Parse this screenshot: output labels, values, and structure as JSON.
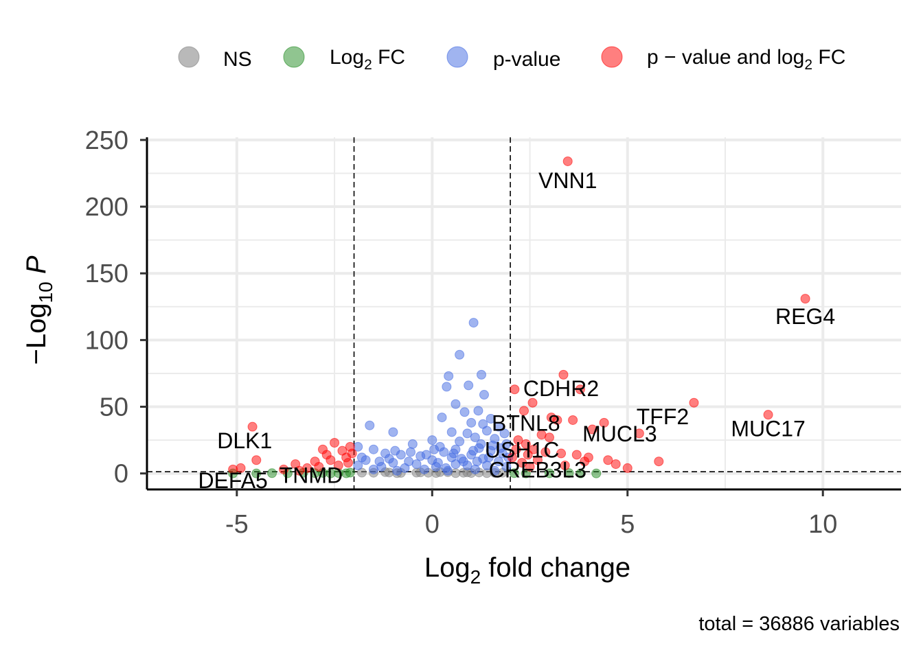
{
  "chart_data": {
    "type": "scatter",
    "subtype": "volcano",
    "xlabel": "Log2 fold change",
    "ylabel": "−Log10 P",
    "caption": "total = 36886 variables",
    "xlim": [
      -7.3,
      12.0
    ],
    "ylim": [
      -12,
      252
    ],
    "xticks": [
      -5,
      0,
      5,
      10
    ],
    "yticks": [
      0,
      50,
      100,
      150,
      200,
      250
    ],
    "grid": true,
    "fc_cutoff": [
      -2,
      2
    ],
    "p_cutoff": 1.3,
    "legend_position": "top",
    "legend": [
      {
        "key": "NS",
        "text": "NS",
        "color": "#808080"
      },
      {
        "key": "FC",
        "text": "Log2 FC",
        "color": "#228b22"
      },
      {
        "key": "P",
        "text": "p-value",
        "color": "#4169e1"
      },
      {
        "key": "FC_P",
        "text": "p − value and log2 FC",
        "color": "#ff0000"
      }
    ],
    "series": [
      {
        "key": "NS",
        "color": "#808080",
        "points": [
          [
            -1.5,
            0.5
          ],
          [
            -1.2,
            1.0
          ],
          [
            -0.8,
            0.4
          ],
          [
            -0.3,
            0.8
          ],
          [
            0.1,
            0.3
          ],
          [
            0.4,
            0.9
          ],
          [
            0.8,
            0.5
          ],
          [
            1.2,
            0.7
          ],
          [
            1.6,
            0.4
          ],
          [
            -0.9,
            0.2
          ],
          [
            0.6,
            0.2
          ],
          [
            -0.4,
            0.6
          ],
          [
            1.0,
            0.3
          ],
          [
            -1.8,
            0.6
          ],
          [
            1.8,
            0.5
          ],
          [
            0.2,
            1.0
          ],
          [
            -0.1,
            0.5
          ],
          [
            0.9,
            0.8
          ],
          [
            1.4,
            0.2
          ],
          [
            -1.1,
            0.7
          ]
        ]
      },
      {
        "key": "FC",
        "color": "#228b22",
        "points": [
          [
            -4.5,
            0.0
          ],
          [
            -4.1,
            0.2
          ],
          [
            -3.7,
            0.1
          ],
          [
            -3.3,
            0.5
          ],
          [
            -3.0,
            0.2
          ],
          [
            -2.8,
            0.4
          ],
          [
            -2.6,
            0.0
          ],
          [
            -2.4,
            0.3
          ],
          [
            -2.2,
            0.1
          ],
          [
            -2.1,
            0.6
          ],
          [
            2.1,
            0.2
          ],
          [
            2.4,
            0.0
          ],
          [
            3.0,
            0.1
          ],
          [
            3.5,
            0.3
          ],
          [
            3.8,
            0.0
          ],
          [
            4.2,
            0.0
          ],
          [
            -5.1,
            0.0
          ]
        ]
      },
      {
        "key": "P",
        "color": "#4169e1",
        "points": [
          [
            1.06,
            113
          ],
          [
            0.7,
            89
          ],
          [
            1.26,
            74
          ],
          [
            0.42,
            73
          ],
          [
            0.37,
            65
          ],
          [
            0.93,
            66
          ],
          [
            1.33,
            59
          ],
          [
            0.6,
            52
          ],
          [
            0.83,
            46
          ],
          [
            1.18,
            47
          ],
          [
            0.25,
            42
          ],
          [
            1.5,
            41
          ],
          [
            -1.6,
            36
          ],
          [
            1.0,
            38
          ],
          [
            1.3,
            37
          ],
          [
            1.7,
            35
          ],
          [
            -1.0,
            31
          ],
          [
            0.5,
            31
          ],
          [
            0.9,
            30
          ],
          [
            1.4,
            32
          ],
          [
            0.0,
            25
          ],
          [
            -0.5,
            22
          ],
          [
            0.2,
            20
          ],
          [
            0.7,
            24
          ],
          [
            1.1,
            27
          ],
          [
            1.6,
            26
          ],
          [
            1.9,
            22
          ],
          [
            -1.9,
            20
          ],
          [
            -1.5,
            18
          ],
          [
            -1.2,
            15
          ],
          [
            -0.8,
            14
          ],
          [
            -0.3,
            13
          ],
          [
            0.3,
            16
          ],
          [
            0.6,
            18
          ],
          [
            1.2,
            19
          ],
          [
            1.5,
            17
          ],
          [
            1.8,
            15
          ],
          [
            -1.7,
            10
          ],
          [
            -1.0,
            8
          ],
          [
            -0.6,
            9
          ],
          [
            0.0,
            10
          ],
          [
            0.5,
            12
          ],
          [
            1.0,
            14
          ],
          [
            1.3,
            11
          ],
          [
            1.7,
            9
          ],
          [
            1.95,
            12
          ],
          [
            -1.9,
            6
          ],
          [
            -1.3,
            5
          ],
          [
            -0.7,
            4
          ],
          [
            0.1,
            5
          ],
          [
            0.6,
            7
          ],
          [
            0.9,
            6
          ],
          [
            1.4,
            6
          ],
          [
            1.9,
            5
          ],
          [
            -1.5,
            3
          ],
          [
            -0.9,
            2
          ],
          [
            -0.2,
            3
          ],
          [
            0.4,
            2
          ],
          [
            1.1,
            3
          ],
          [
            1.6,
            2
          ],
          [
            -1.8,
            12
          ],
          [
            -1.1,
            11
          ],
          [
            -0.4,
            7
          ],
          [
            0.8,
            9
          ],
          [
            1.25,
            22
          ],
          [
            1.45,
            12
          ],
          [
            0.15,
            8
          ],
          [
            -0.15,
            14
          ],
          [
            0.35,
            4
          ],
          [
            1.85,
            30
          ],
          [
            1.55,
            21
          ],
          [
            1.05,
            17
          ],
          [
            0.75,
            11
          ],
          [
            -0.95,
            17
          ],
          [
            -1.35,
            9
          ],
          [
            0.55,
            15
          ],
          [
            1.15,
            9
          ],
          [
            1.75,
            19
          ],
          [
            -0.55,
            16
          ],
          [
            0.05,
            18
          ]
        ]
      },
      {
        "key": "FC_P",
        "color": "#ff0000",
        "points": [
          [
            3.47,
            234
          ],
          [
            9.55,
            131
          ],
          [
            3.36,
            74
          ],
          [
            3.79,
            63
          ],
          [
            2.11,
            63
          ],
          [
            6.7,
            53
          ],
          [
            8.6,
            44
          ],
          [
            2.35,
            47
          ],
          [
            2.57,
            53
          ],
          [
            3.05,
            42
          ],
          [
            3.2,
            40
          ],
          [
            3.6,
            40
          ],
          [
            4.4,
            38
          ],
          [
            4.1,
            33
          ],
          [
            5.3,
            30
          ],
          [
            2.8,
            29
          ],
          [
            3.0,
            27
          ],
          [
            2.2,
            25
          ],
          [
            2.4,
            22
          ],
          [
            2.6,
            18
          ],
          [
            2.9,
            16
          ],
          [
            3.3,
            15
          ],
          [
            3.7,
            14
          ],
          [
            4.0,
            12
          ],
          [
            4.5,
            10
          ],
          [
            5.8,
            9
          ],
          [
            4.7,
            7
          ],
          [
            5.0,
            4
          ],
          [
            2.05,
            12
          ],
          [
            2.3,
            8
          ],
          [
            2.5,
            5
          ],
          [
            2.7,
            10
          ],
          [
            3.4,
            6
          ],
          [
            3.9,
            9
          ],
          [
            2.15,
            18
          ],
          [
            2.45,
            14
          ],
          [
            -4.6,
            35
          ],
          [
            -4.5,
            10
          ],
          [
            -4.9,
            4
          ],
          [
            -5.1,
            3
          ],
          [
            -3.5,
            7
          ],
          [
            -3.0,
            9
          ],
          [
            -2.5,
            23
          ],
          [
            -2.3,
            17
          ],
          [
            -2.2,
            12
          ],
          [
            -2.7,
            14
          ],
          [
            -2.1,
            20
          ],
          [
            -2.4,
            6
          ],
          [
            -3.2,
            4
          ],
          [
            -2.9,
            5
          ],
          [
            -2.05,
            15
          ],
          [
            -2.6,
            10
          ],
          [
            -3.8,
            3
          ],
          [
            -2.15,
            8
          ],
          [
            -2.8,
            18
          ],
          [
            -3.4,
            2
          ]
        ]
      }
    ],
    "annotations": [
      {
        "text": "VNN1",
        "x": 3.47,
        "y": 214
      },
      {
        "text": "REG4",
        "x": 9.55,
        "y": 112
      },
      {
        "text": "CDHR2",
        "x": 3.3,
        "y": 58
      },
      {
        "text": "TFF2",
        "x": 5.9,
        "y": 37
      },
      {
        "text": "MUC17",
        "x": 8.6,
        "y": 28
      },
      {
        "text": "BTNL8",
        "x": 2.4,
        "y": 32
      },
      {
        "text": "MUCL3",
        "x": 4.8,
        "y": 24
      },
      {
        "text": "USH1C",
        "x": 2.3,
        "y": 12
      },
      {
        "text": "CREB3L3",
        "x": 2.7,
        "y": -3
      },
      {
        "text": "DLK1",
        "x": -4.8,
        "y": 19
      },
      {
        "text": "DEFA5",
        "x": -5.1,
        "y": -11
      },
      {
        "text": "TNMD",
        "x": -3.1,
        "y": -7
      }
    ]
  }
}
